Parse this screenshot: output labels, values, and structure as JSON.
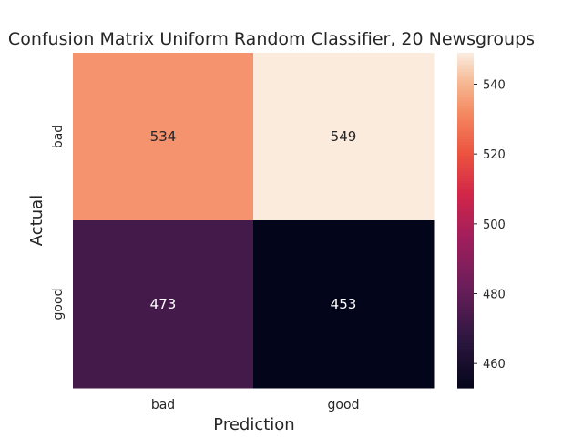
{
  "chart_data": {
    "type": "heatmap",
    "title": "Confusion Matrix Uniform Random Classifier, 20 Newsgroups",
    "xlabel": "Prediction",
    "ylabel": "Actual",
    "x_categories": [
      "bad",
      "good"
    ],
    "y_categories": [
      "bad",
      "good"
    ],
    "values": [
      [
        534,
        549
      ],
      [
        473,
        453
      ]
    ],
    "colormap": "rocket",
    "color_range": [
      453,
      549
    ],
    "colorbar_ticks": [
      460,
      480,
      500,
      520,
      540
    ],
    "annotations": true,
    "grid": false
  }
}
